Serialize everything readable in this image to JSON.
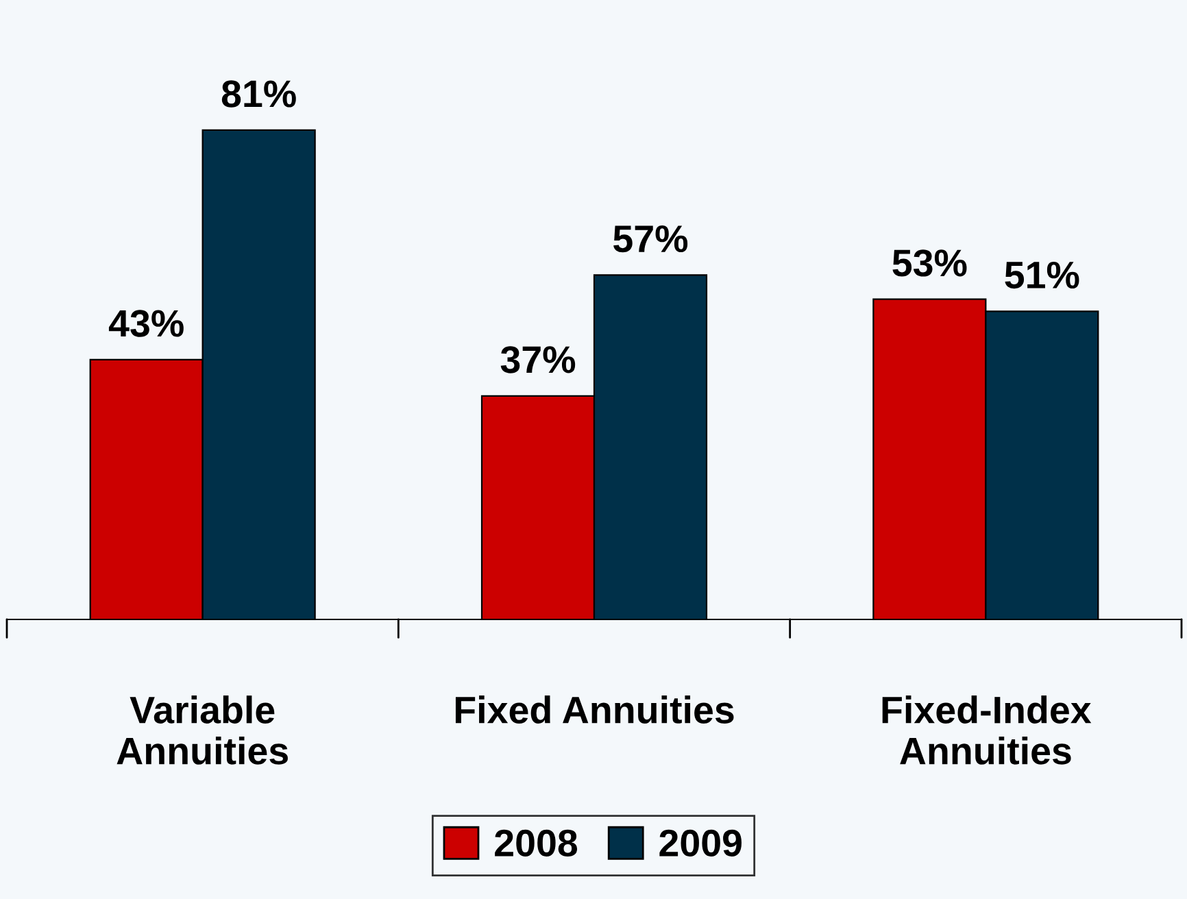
{
  "chart_data": {
    "type": "bar",
    "categories": [
      "Variable\nAnnuities",
      "Fixed Annuities",
      "Fixed-Index\nAnnuities"
    ],
    "series": [
      {
        "name": "2008",
        "color": "#cc0000",
        "values": [
          43,
          37,
          53
        ],
        "value_labels": [
          "43%",
          "37%",
          "53%"
        ]
      },
      {
        "name": "2009",
        "color": "#003049",
        "values": [
          81,
          57,
          51
        ],
        "value_labels": [
          "81%",
          "57%",
          "51%"
        ]
      }
    ],
    "legend": "bottom",
    "grid": false
  }
}
